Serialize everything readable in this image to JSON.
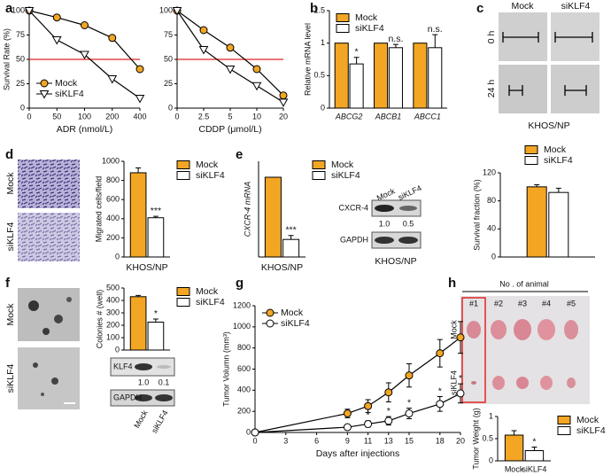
{
  "panel_letters": [
    "a",
    "b",
    "c",
    "d",
    "e",
    "f",
    "g",
    "h"
  ],
  "images": {
    "c": {
      "columns": [
        "Mock",
        "siKLF4"
      ],
      "rows": [
        "0 h",
        "24 h"
      ],
      "caption": "KHOS/NP"
    },
    "d": {
      "rows": [
        "Mock",
        "siKLF4"
      ]
    },
    "f": {
      "rows": [
        "Mock",
        "siKLF4"
      ]
    },
    "h": {
      "title": "No . of animal",
      "columns": [
        "#1",
        "#2",
        "#3",
        "#4",
        "#5"
      ],
      "rows": [
        "Mock",
        "siKLF4"
      ]
    }
  },
  "blots": [
    {
      "columns": [
        "Mock",
        "siKLF4"
      ],
      "rows": [
        "CXCR-4",
        "GAPDH"
      ],
      "ratios": [
        "1.0",
        "0.5"
      ],
      "caption": "KHOS/NP"
    },
    {
      "columns": [
        "Mock",
        "siKLF4"
      ],
      "rows": [
        "KLF4",
        "GAPDH"
      ],
      "ratios": [
        "1.0",
        "0.1"
      ]
    }
  ],
  "chart_data": [
    {
      "type": "line",
      "ylabel": "Survival Rate (%)",
      "xlabel": "ADR (nmol/L)",
      "categories": [
        "0",
        "50",
        "100",
        "200",
        "400"
      ],
      "ylim": [
        0,
        100
      ],
      "yticks": [
        0,
        25,
        50,
        75,
        100
      ],
      "hline": {
        "value": 50,
        "color": "#e02424"
      },
      "legend": "lower left",
      "series": [
        {
          "name": "Mock",
          "color": "#f2a623",
          "marker": "circle",
          "values": [
            100,
            93,
            85,
            72,
            40
          ]
        },
        {
          "name": "siKLF4",
          "color": "#ffffff",
          "marker": "triangle-down",
          "values": [
            100,
            70,
            55,
            30,
            10
          ]
        }
      ]
    },
    {
      "type": "line",
      "xlabel": "CDDP (μmol/L)",
      "categories": [
        "0",
        "2.5",
        "5",
        "10",
        "20"
      ],
      "ylim": [
        0,
        100
      ],
      "yticks": [
        0,
        25,
        50,
        75,
        100
      ],
      "hline": {
        "value": 50,
        "color": "#e02424"
      },
      "series": [
        {
          "color": "#f2a623",
          "marker": "circle",
          "values": [
            100,
            80,
            62,
            40,
            13
          ]
        },
        {
          "color": "#ffffff",
          "marker": "triangle-down",
          "values": [
            100,
            60,
            40,
            23,
            6
          ]
        }
      ]
    },
    {
      "type": "bar",
      "ylabel": "Relative mRNA level",
      "categories": [
        "ABCG2",
        "ABCB1",
        "ABCC1"
      ],
      "category_style": "italic",
      "ylim": [
        0,
        1.5
      ],
      "yticks": [
        0,
        0.5,
        1,
        1.5
      ],
      "legend": "upper left",
      "series": [
        {
          "name": "Mock",
          "color": "#f2a623",
          "values": [
            1,
            1,
            1
          ]
        },
        {
          "name": "siKLF4",
          "color": "#ffffff",
          "values": [
            0.68,
            0.93,
            0.93
          ],
          "errors": [
            0.1,
            0.05,
            0.2
          ],
          "marks": [
            "*",
            "n.s.",
            "n.s."
          ]
        }
      ]
    },
    {
      "type": "bar",
      "ylabel": "Survival fraction (%)",
      "categories": [
        null
      ],
      "ylim": [
        0,
        120
      ],
      "yticks": [
        0,
        40,
        80,
        120
      ],
      "legend": "top",
      "series": [
        {
          "name": "Mock",
          "color": "#f2a623",
          "values": [
            100
          ],
          "errors": [
            3
          ]
        },
        {
          "name": "siKLF4",
          "color": "#ffffff",
          "values": [
            92
          ],
          "errors": [
            6
          ]
        }
      ]
    },
    {
      "type": "bar",
      "ylabel": "Migrated cells/field",
      "xlabel": "KHOS/NP",
      "categories": [
        null
      ],
      "ylim": [
        0,
        1000
      ],
      "yticks": [
        0,
        200,
        400,
        600,
        800,
        1000
      ],
      "legend": "right",
      "series": [
        {
          "name": "Mock",
          "color": "#f2a623",
          "values": [
            880
          ],
          "errors": [
            50
          ]
        },
        {
          "name": "siKLF4",
          "color": "#ffffff",
          "values": [
            410
          ],
          "errors": [
            15
          ],
          "marks": [
            "***"
          ]
        }
      ]
    },
    {
      "type": "bar",
      "ylabel": "CXCR-4 mRNA",
      "ylabel_style": "italic",
      "xlabel": "KHOS/NP",
      "categories": [
        null
      ],
      "ylim": [
        0,
        1.2
      ],
      "yticks": [],
      "legend": "right",
      "series": [
        {
          "name": "Mock",
          "color": "#f2a623",
          "values": [
            1
          ]
        },
        {
          "name": "siKLF4",
          "color": "#ffffff",
          "values": [
            0.22
          ],
          "errors": [
            0.05
          ],
          "marks": [
            "***"
          ]
        }
      ]
    },
    {
      "type": "bar",
      "ylabel": "Colonies # (well)",
      "categories": [
        null
      ],
      "ylim": [
        0,
        500
      ],
      "yticks": [
        0,
        100,
        200,
        300,
        400,
        500
      ],
      "legend": "right",
      "series": [
        {
          "name": "Mock",
          "color": "#f2a623",
          "values": [
            430
          ],
          "errors": [
            10
          ]
        },
        {
          "name": "siKLF4",
          "color": "#ffffff",
          "values": [
            225
          ],
          "errors": [
            25
          ],
          "marks": [
            "*"
          ]
        }
      ]
    },
    {
      "type": "line",
      "ylabel": "Tumor Volumn (mm³)",
      "xlabel": "Days after injections",
      "x": [
        0,
        9,
        11,
        13,
        15,
        18,
        20
      ],
      "xlim": [
        0,
        20
      ],
      "xticks": [
        0,
        3,
        6,
        9,
        11,
        13,
        15,
        18,
        20
      ],
      "ylim": [
        0,
        1200
      ],
      "yticks": [
        0,
        200,
        400,
        600,
        800,
        1000,
        1200
      ],
      "legend": "upper left",
      "series": [
        {
          "name": "Mock",
          "color": "#f2a623",
          "marker": "circle",
          "values": [
            0,
            180,
            250,
            380,
            540,
            750,
            900
          ],
          "errors": [
            0,
            40,
            60,
            90,
            110,
            130,
            150
          ]
        },
        {
          "name": "siKLF4",
          "color": "#ffffff",
          "marker": "circle",
          "values": [
            0,
            50,
            80,
            110,
            180,
            270,
            370
          ],
          "errors": [
            0,
            20,
            30,
            40,
            50,
            70,
            90
          ],
          "marks": [
            null,
            null,
            "*",
            "*",
            "*",
            "*",
            "*"
          ]
        }
      ]
    },
    {
      "type": "bar",
      "ylabel": "Tumor Weight (g)",
      "categories": [
        null
      ],
      "xlabels": [
        "Mock",
        "siKLF4"
      ],
      "ylim": [
        0,
        1
      ],
      "yticks": [
        0,
        0.5,
        1
      ],
      "legend": "right",
      "series": [
        {
          "name": "Mock",
          "color": "#f2a623",
          "values": [
            0.58
          ],
          "errors": [
            0.1
          ]
        },
        {
          "name": "siKLF4",
          "color": "#ffffff",
          "values": [
            0.23
          ],
          "errors": [
            0.08
          ],
          "marks": [
            "*"
          ]
        }
      ]
    }
  ]
}
